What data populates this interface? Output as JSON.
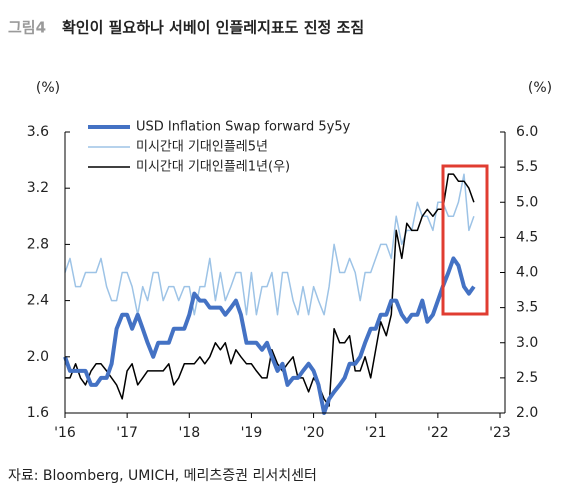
{
  "chart_data": {
    "type": "line",
    "figure_label": "그림4",
    "title": "확인이 필요하나 서베이 인플레지표도 진정 조짐",
    "y_unit": "(%)",
    "y2_unit": "(%)",
    "source": "자료: Bloomberg, UMICH, 메리츠증권 리서치센터",
    "x": [
      2016.0,
      2016.08,
      2016.17,
      2016.25,
      2016.33,
      2016.42,
      2016.5,
      2016.58,
      2016.67,
      2016.75,
      2016.83,
      2016.92,
      2017.0,
      2017.08,
      2017.17,
      2017.25,
      2017.33,
      2017.42,
      2017.5,
      2017.58,
      2017.67,
      2017.75,
      2017.83,
      2017.92,
      2018.0,
      2018.08,
      2018.17,
      2018.25,
      2018.33,
      2018.42,
      2018.5,
      2018.58,
      2018.67,
      2018.75,
      2018.83,
      2018.92,
      2019.0,
      2019.08,
      2019.17,
      2019.25,
      2019.33,
      2019.42,
      2019.5,
      2019.58,
      2019.67,
      2019.75,
      2019.83,
      2019.92,
      2020.0,
      2020.08,
      2020.17,
      2020.25,
      2020.33,
      2020.42,
      2020.5,
      2020.58,
      2020.67,
      2020.75,
      2020.83,
      2020.92,
      2021.0,
      2021.08,
      2021.17,
      2021.25,
      2021.33,
      2021.42,
      2021.5,
      2021.58,
      2021.67,
      2021.75,
      2021.83,
      2021.92,
      2022.0,
      2022.08,
      2022.17,
      2022.25,
      2022.33,
      2022.42,
      2022.5,
      2022.58
    ],
    "xlim": [
      2016,
      2023
    ],
    "xticks": [
      {
        "value": 2016,
        "label": "'16"
      },
      {
        "value": 2017,
        "label": "'17"
      },
      {
        "value": 2018,
        "label": "'18"
      },
      {
        "value": 2019,
        "label": "'19"
      },
      {
        "value": 2020,
        "label": "'20"
      },
      {
        "value": 2021,
        "label": "'21"
      },
      {
        "value": 2022,
        "label": "'22"
      },
      {
        "value": 2023,
        "label": "'23"
      }
    ],
    "ylim": [
      1.6,
      3.6
    ],
    "yticks": [
      1.6,
      {
        "value": 2,
        "label": "2.0"
      },
      2.4,
      2.8,
      3.2,
      3.6
    ],
    "y2lim": [
      2,
      6
    ],
    "y2ticks": [
      {
        "value": 2,
        "label": "2.0"
      },
      2.5,
      {
        "value": 3,
        "label": "3.0"
      },
      3.5,
      {
        "value": 4,
        "label": "4.0"
      },
      4.5,
      {
        "value": 5,
        "label": "5.0"
      },
      5.5,
      {
        "value": 6,
        "label": "6.0"
      }
    ],
    "legend": "upper left",
    "series": [
      {
        "name": "USD Inflation Swap forward 5y5y",
        "color": "#4472c4",
        "width": 4,
        "values": [
          2.0,
          1.9,
          1.9,
          1.9,
          1.9,
          1.8,
          1.8,
          1.85,
          1.85,
          1.95,
          2.2,
          2.3,
          2.3,
          2.2,
          2.3,
          2.2,
          2.1,
          2.0,
          2.1,
          2.1,
          2.1,
          2.2,
          2.2,
          2.2,
          2.3,
          2.45,
          2.4,
          2.4,
          2.35,
          2.35,
          2.35,
          2.3,
          2.35,
          2.4,
          2.3,
          2.1,
          2.1,
          2.1,
          2.05,
          2.1,
          2.0,
          1.9,
          1.95,
          1.8,
          1.85,
          1.85,
          1.9,
          1.95,
          1.9,
          1.8,
          1.6,
          1.7,
          1.75,
          1.8,
          1.85,
          1.95,
          1.95,
          2.0,
          2.1,
          2.2,
          2.2,
          2.3,
          2.3,
          2.4,
          2.4,
          2.3,
          2.25,
          2.3,
          2.3,
          2.4,
          2.25,
          2.3,
          2.4,
          2.5,
          2.6,
          2.7,
          2.65,
          2.5,
          2.45,
          2.5
        ]
      },
      {
        "name": "미시간대 기대인플레5년",
        "color": "#9dc3e6",
        "width": 1.5,
        "values": [
          2.6,
          2.7,
          2.5,
          2.5,
          2.6,
          2.6,
          2.6,
          2.7,
          2.5,
          2.4,
          2.4,
          2.6,
          2.6,
          2.5,
          2.3,
          2.5,
          2.4,
          2.6,
          2.6,
          2.4,
          2.5,
          2.5,
          2.4,
          2.5,
          2.5,
          2.3,
          2.5,
          2.5,
          2.7,
          2.4,
          2.6,
          2.4,
          2.5,
          2.6,
          2.6,
          2.3,
          2.6,
          2.3,
          2.5,
          2.5,
          2.6,
          2.3,
          2.6,
          2.6,
          2.4,
          2.3,
          2.5,
          2.3,
          2.5,
          2.4,
          2.3,
          2.5,
          2.8,
          2.6,
          2.6,
          2.7,
          2.6,
          2.4,
          2.6,
          2.6,
          2.7,
          2.8,
          2.8,
          2.7,
          3.0,
          2.8,
          2.9,
          2.9,
          3.1,
          3.0,
          3.0,
          2.9,
          3.1,
          3.1,
          3.0,
          3.0,
          3.1,
          3.3,
          2.9,
          3.0
        ]
      },
      {
        "name": "미시간대 기대인플레1년(우)",
        "color": "#000000",
        "width": 1.5,
        "axis": "y2",
        "values": [
          2.5,
          2.5,
          2.7,
          2.5,
          2.4,
          2.6,
          2.7,
          2.7,
          2.6,
          2.5,
          2.4,
          2.2,
          2.6,
          2.7,
          2.4,
          2.5,
          2.6,
          2.6,
          2.6,
          2.6,
          2.7,
          2.4,
          2.5,
          2.7,
          2.7,
          2.7,
          2.8,
          2.7,
          2.8,
          3.0,
          2.9,
          3.0,
          2.7,
          2.9,
          2.8,
          2.7,
          2.7,
          2.6,
          2.5,
          2.5,
          2.9,
          2.7,
          2.6,
          2.7,
          2.8,
          2.5,
          2.5,
          2.3,
          2.5,
          2.4,
          2.2,
          2.1,
          3.2,
          3.0,
          3.0,
          3.1,
          2.6,
          2.6,
          2.8,
          2.5,
          2.9,
          3.3,
          3.1,
          3.4,
          4.6,
          4.2,
          4.7,
          4.6,
          4.6,
          4.8,
          4.9,
          4.8,
          4.9,
          4.9,
          5.4,
          5.4,
          5.3,
          5.3,
          5.2,
          5.0
        ]
      }
    ]
  }
}
